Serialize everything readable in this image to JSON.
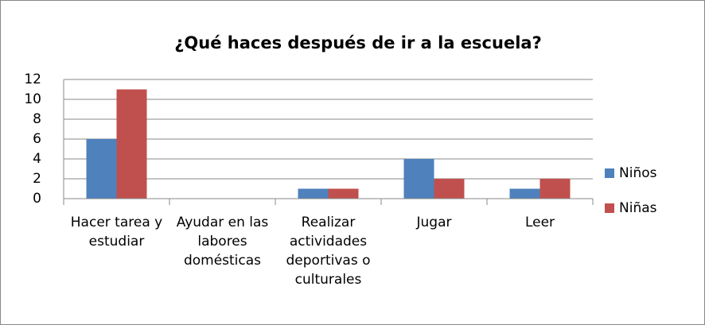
{
  "chart_data": {
    "type": "bar",
    "title": "¿Qué haces después de ir a la escuela?",
    "categories": [
      "Hacer tarea y estudiar",
      "Ayudar en las labores domésticas",
      "Realizar actividades deportivas o culturales",
      "Jugar",
      "Leer"
    ],
    "series": [
      {
        "name": "Niños",
        "color": "#4f81bd",
        "values": [
          6,
          0,
          1,
          4,
          1
        ]
      },
      {
        "name": "Niñas",
        "color": "#c0504d",
        "values": [
          11,
          0,
          1,
          2,
          2
        ]
      }
    ],
    "ylim": [
      0,
      12
    ],
    "yticks": [
      0,
      2,
      4,
      6,
      8,
      10,
      12
    ],
    "grid": true,
    "legend": "right"
  }
}
